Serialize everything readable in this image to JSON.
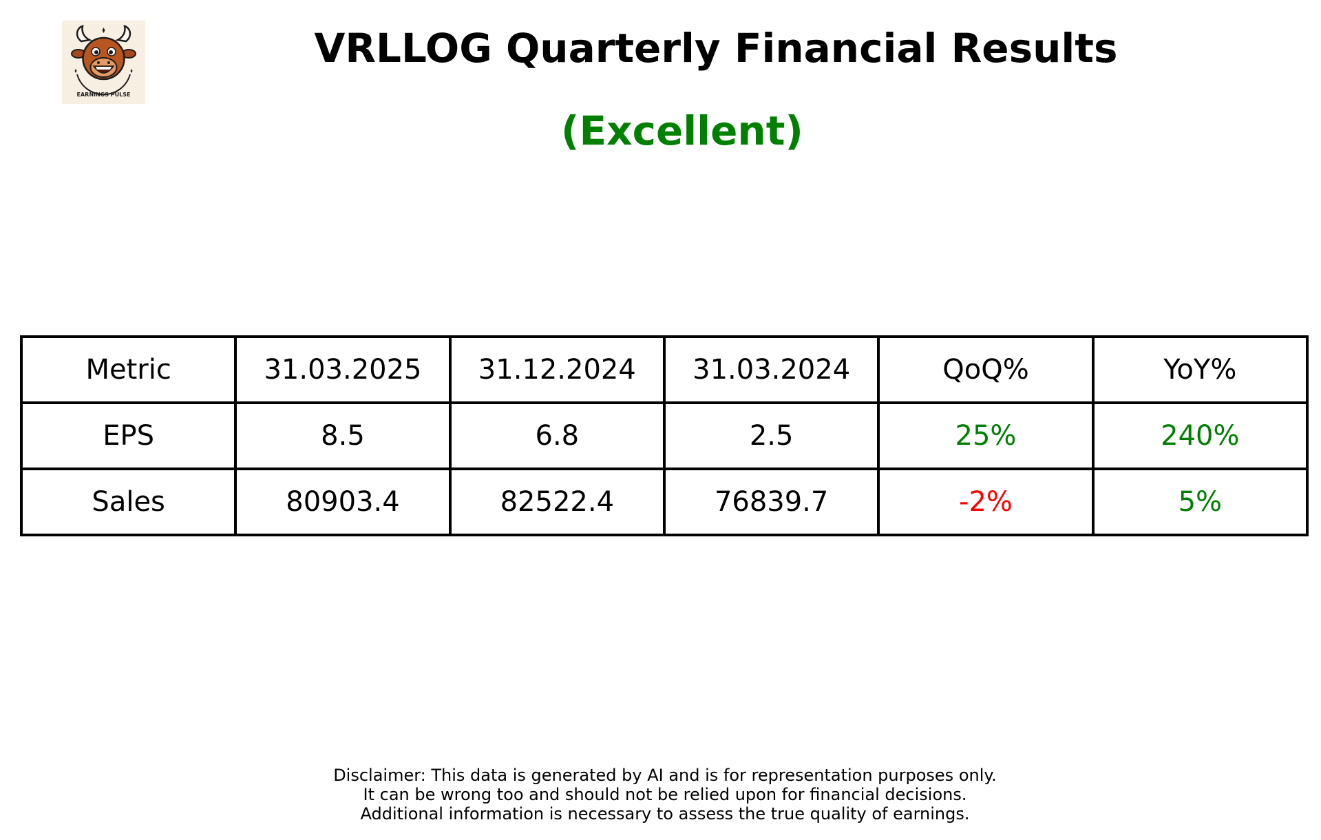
{
  "logo": {
    "text": "EARNINGS PULSE",
    "icon": "bull-mascot-icon"
  },
  "title": "VRLLOG Quarterly Financial Results",
  "rating": {
    "label": "(Excellent)",
    "color": "#008000"
  },
  "chart_data": {
    "type": "table",
    "columns": [
      "Metric",
      "31.03.2025",
      "31.12.2024",
      "31.03.2024",
      "QoQ%",
      "YoY%"
    ],
    "rows": [
      {
        "cells": [
          "EPS",
          "8.5",
          "6.8",
          "2.5",
          "25%",
          "240%"
        ],
        "colors": [
          "#000000",
          "#000000",
          "#000000",
          "#000000",
          "#008000",
          "#008000"
        ]
      },
      {
        "cells": [
          "Sales",
          "80903.4",
          "82522.4",
          "76839.7",
          "-2%",
          "5%"
        ],
        "colors": [
          "#000000",
          "#000000",
          "#000000",
          "#000000",
          "#ff0000",
          "#008000"
        ]
      }
    ]
  },
  "disclaimer": [
    "Disclaimer: This data is generated by AI and is for representation purposes only.",
    "It can be wrong too and should not be relied upon for financial decisions.",
    "Additional information is necessary to assess the true quality of earnings."
  ]
}
